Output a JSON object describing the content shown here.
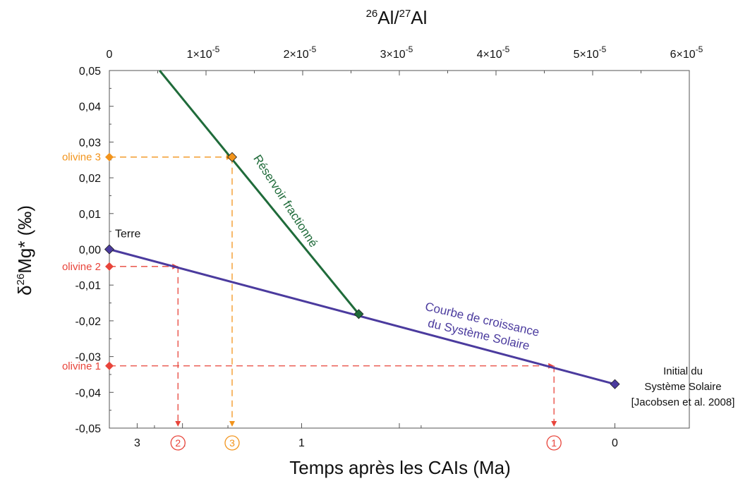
{
  "chart_data": {
    "type": "line",
    "title_parts": [
      "26",
      "Al/",
      "27",
      "Al"
    ],
    "ylabel_parts": [
      "δ",
      "26",
      "Mg* (‰)"
    ],
    "xlabel": "Temps après les CAIs (Ma)",
    "ylim": [
      -0.05,
      0.05
    ],
    "yticks": [
      "0,05",
      "0,04",
      "0,03",
      "0,02",
      "0,01",
      "0,00",
      "-0,01",
      "-0,02",
      "-0,03",
      "-0,04",
      "-0,05"
    ],
    "ytick_values": [
      0.05,
      0.04,
      0.03,
      0.02,
      0.01,
      0.0,
      -0.01,
      -0.02,
      -0.03,
      -0.04,
      -0.05
    ],
    "top_axis": {
      "range": [
        0,
        6e-05
      ],
      "ticks": [
        {
          "value": 0,
          "mant": "0",
          "exp": ""
        },
        {
          "value": 1e-05,
          "mant": "1×10",
          "exp": "-5"
        },
        {
          "value": 2e-05,
          "mant": "2×10",
          "exp": "-5"
        },
        {
          "value": 3e-05,
          "mant": "3×10",
          "exp": "-5"
        },
        {
          "value": 4e-05,
          "mant": "4×10",
          "exp": "-5"
        },
        {
          "value": 5e-05,
          "mant": "5×10",
          "exp": "-5"
        },
        {
          "value": 6e-05,
          "mant": "6×10",
          "exp": "-5"
        }
      ],
      "minor": [
        5e-06,
        1.5e-05,
        2.5e-05,
        3.5e-05,
        4.5e-05,
        5.5e-05
      ]
    },
    "bottom_axis": {
      "note": "time in Ma mapped to 26Al/27Al = 5.23e-5 * exp(-t*ln2/0.717)",
      "al0": 5.23e-05,
      "half_life_ma": 0.717,
      "ticks": [
        {
          "value": 3,
          "label": "3"
        },
        {
          "value": 2,
          "label": "2"
        },
        {
          "value": 1,
          "label": "1"
        },
        {
          "value": 0,
          "label": "0"
        }
      ],
      "minor": [
        2.5,
        1.5,
        0.5
      ],
      "extra_major_al": [
        3e-05
      ]
    },
    "series": [
      {
        "name": "Courbe de croissance du Système Solaire",
        "color": "#4b3b9e",
        "label_lines": [
          "Courbe de croissance",
          "du Système Solaire"
        ],
        "points": [
          [
            0,
            0.0
          ],
          [
            5.23e-05,
            -0.0377
          ]
        ]
      },
      {
        "name": "Réservoir fractionné",
        "color": "#1f6b3a",
        "label_lines": [
          "Réservoir fractionné"
        ],
        "points": [
          [
            5.2e-06,
            0.05
          ],
          [
            2.58e-05,
            -0.0181
          ]
        ]
      }
    ],
    "markers": [
      {
        "x": 0,
        "y": 0.0,
        "color": "#4b3b9e",
        "label": "Terre"
      },
      {
        "x": 5.23e-05,
        "y": -0.0377,
        "color": "#4b3b9e",
        "label_lines": [
          "Initial du",
          "Système Solaire",
          "[Jacobsen et al. 2008]"
        ]
      },
      {
        "x": 2.58e-05,
        "y": -0.0181,
        "color": "#1f6b3a"
      },
      {
        "x": 1.27e-05,
        "y": 0.0258,
        "color": "#f2941c"
      }
    ],
    "olivines": [
      {
        "label": "olivine 3",
        "y": 0.0258,
        "x": 1.27e-05,
        "color": "#f2941c",
        "circle": "3"
      },
      {
        "label": "olivine 2",
        "y": -0.0048,
        "x": 7.1e-06,
        "color": "#e8443a",
        "circle": "2"
      },
      {
        "label": "olivine 1",
        "y": -0.0326,
        "x": 4.6e-05,
        "color": "#e8443a",
        "circle": "1"
      }
    ]
  }
}
